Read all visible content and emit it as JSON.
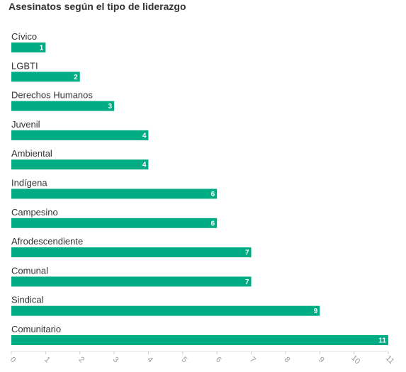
{
  "chart_data": {
    "type": "bar",
    "orientation": "horizontal",
    "title": "Asesinatos según el tipo de liderazgo",
    "categories": [
      "Cívico",
      "LGBTI",
      "Derechos Humanos",
      "Juvenil",
      "Ambiental",
      "Indígena",
      "Campesino",
      "Afrodescendiente",
      "Comunal",
      "Sindical",
      "Comunitario"
    ],
    "values": [
      1,
      2,
      3,
      4,
      4,
      6,
      6,
      7,
      7,
      9,
      11
    ],
    "xlim": [
      0,
      11
    ],
    "xticks": [
      0,
      1,
      2,
      3,
      4,
      5,
      6,
      7,
      8,
      9,
      10,
      11
    ],
    "xlabel": "",
    "ylabel": "",
    "grid": false,
    "bar_color": "#00ac84",
    "data_labels": "inside-end"
  }
}
